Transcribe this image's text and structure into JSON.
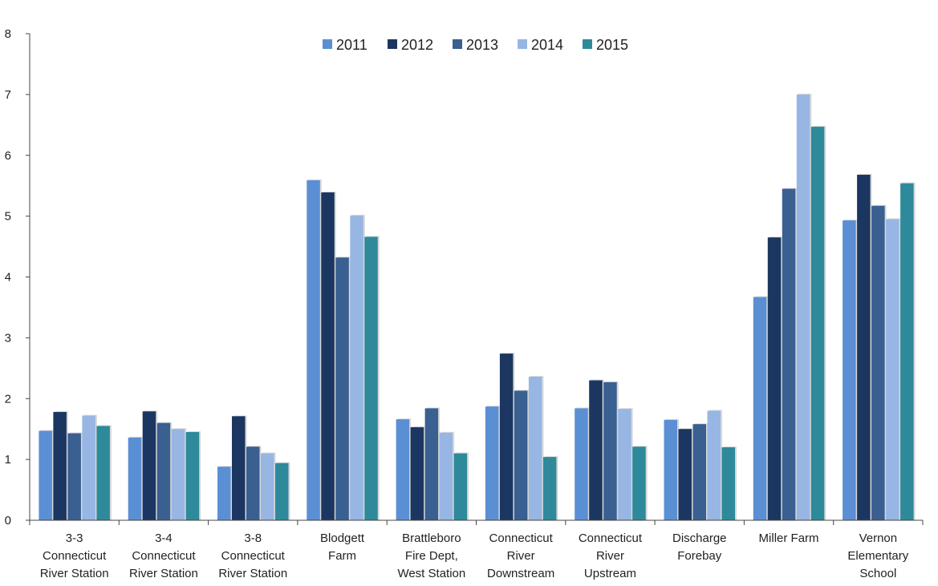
{
  "chart_data": {
    "type": "bar",
    "title": "",
    "xlabel": "",
    "ylabel": "",
    "ylim": [
      0,
      8
    ],
    "yticks": [
      0,
      1,
      2,
      3,
      4,
      5,
      6,
      7,
      8
    ],
    "grid": false,
    "legend_position": "top-center",
    "categories": [
      [
        "3-3",
        "Connecticut",
        "River Station"
      ],
      [
        "3-4",
        "Connecticut",
        "River Station"
      ],
      [
        "3-8",
        "Connecticut",
        "River Station"
      ],
      [
        "Blodgett",
        "Farm"
      ],
      [
        "Brattleboro",
        "Fire Dept,",
        "West Station"
      ],
      [
        "Connecticut",
        "River",
        "Downstream"
      ],
      [
        "Connecticut",
        "River",
        "Upstream"
      ],
      [
        "Discharge",
        "Forebay"
      ],
      [
        "Miller Farm"
      ],
      [
        "Vernon",
        "Elementary",
        "School"
      ]
    ],
    "series": [
      {
        "name": "2011",
        "color": "#5b8fd4",
        "values": [
          1.47,
          1.36,
          0.88,
          5.59,
          1.66,
          1.87,
          1.84,
          1.65,
          3.67,
          4.93
        ]
      },
      {
        "name": "2012",
        "color": "#1b3660",
        "values": [
          1.78,
          1.79,
          1.71,
          5.39,
          1.53,
          2.74,
          2.3,
          1.5,
          4.65,
          5.68
        ]
      },
      {
        "name": "2013",
        "color": "#3a5f91",
        "values": [
          1.43,
          1.6,
          1.21,
          4.32,
          1.84,
          2.13,
          2.27,
          1.58,
          5.45,
          5.17
        ]
      },
      {
        "name": "2014",
        "color": "#97b6e4",
        "values": [
          1.72,
          1.5,
          1.1,
          5.01,
          1.44,
          2.36,
          1.83,
          1.8,
          7.0,
          4.95
        ]
      },
      {
        "name": "2015",
        "color": "#2e8a9a",
        "values": [
          1.55,
          1.45,
          0.94,
          4.66,
          1.1,
          1.04,
          1.21,
          1.2,
          6.47,
          5.54
        ]
      }
    ]
  }
}
